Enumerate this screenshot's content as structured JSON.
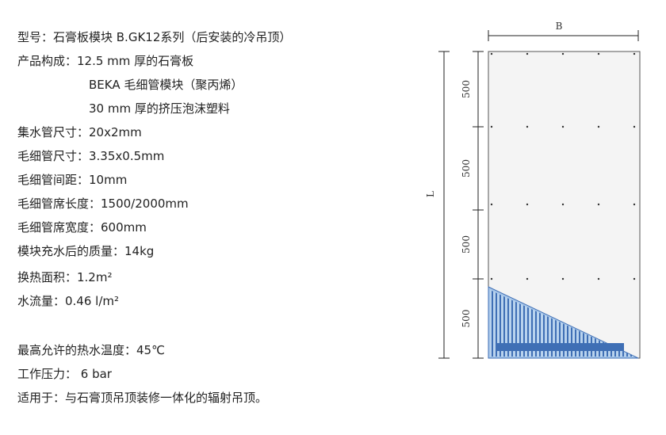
{
  "specs": [
    "型号：石膏板模块 B.GK12系列（后安装的冷吊顶）",
    "产品构成：12.5 mm 厚的石膏板",
    "BEKA 毛细管模块（聚丙烯）",
    "30 mm 厚的挤压泡沫塑料",
    "集水管尺寸：20x2mm",
    "毛细管尺寸：3.35x0.5mm",
    "毛细管间距：10mm",
    "毛细管席长度：1500/2000mm",
    "毛细管席宽度：600mm",
    "模块充水后的质量：14kg",
    "换热面积：1.2m²",
    "水流量：0.46 l/m²",
    "最高允许的热水温度：45℃",
    "工作压力： 6  bar",
    "适用于：与石膏顶吊顶装修一体化的辐射吊顶。"
  ],
  "drawing": {
    "width_label": "B",
    "length_label": "L",
    "segments": [
      500,
      500,
      500,
      500
    ]
  }
}
